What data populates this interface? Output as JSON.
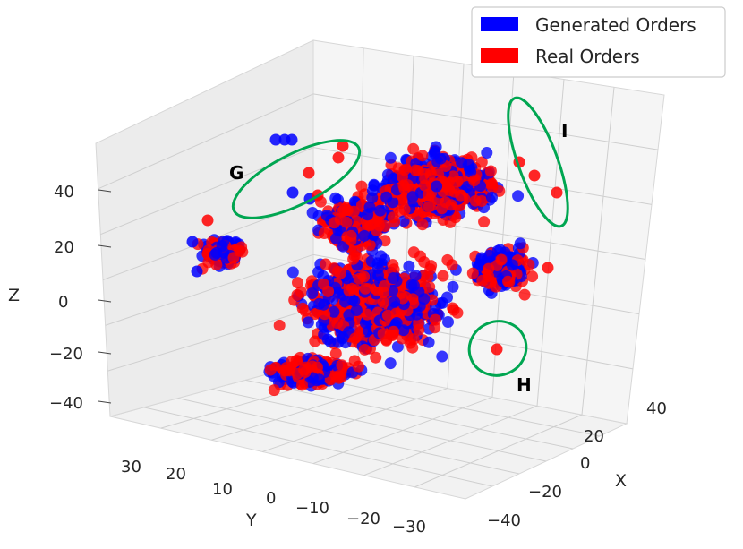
{
  "chart_data": {
    "type": "scatter",
    "projection": "3d",
    "grid": true,
    "legend_position": "top-right",
    "xlabel": "X",
    "ylabel": "Y",
    "zlabel": "Z",
    "xlim": [
      -45,
      45
    ],
    "ylim": [
      -35,
      35
    ],
    "zlim": [
      -45,
      50
    ],
    "xticks": [
      "−40",
      "−20",
      "0",
      "20",
      "40"
    ],
    "yticks": [
      "30",
      "20",
      "10",
      "0",
      "−10",
      "−20",
      "−30"
    ],
    "zticks": [
      "40",
      "20",
      "0",
      "−20",
      "−40"
    ],
    "series": [
      {
        "name": "Generated Orders",
        "color": "#0000ff",
        "n_points": 900
      },
      {
        "name": "Real Orders",
        "color": "#ff0000",
        "n_points": 1300
      }
    ],
    "annotations": [
      {
        "label": "G",
        "color": "#00a651"
      },
      {
        "label": "H",
        "color": "#00a651"
      },
      {
        "label": "I",
        "color": "#00a651"
      }
    ]
  }
}
